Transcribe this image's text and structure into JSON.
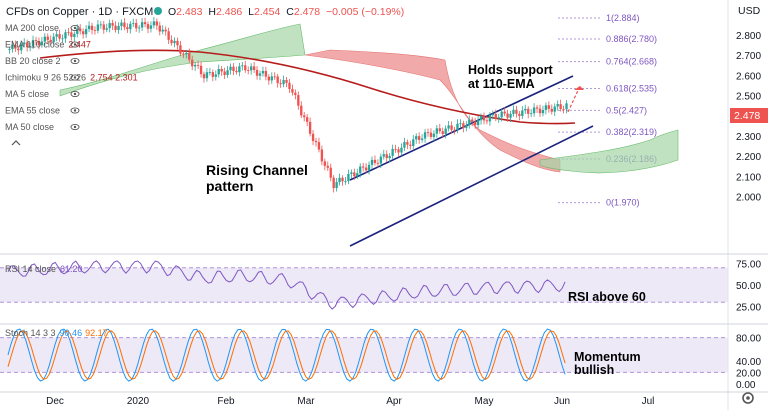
{
  "header": {
    "symbol": "CFDs on Copper · 1D · FXCM",
    "o_label": "O",
    "o": "2.483",
    "h_label": "H",
    "h": "2.486",
    "l_label": "L",
    "l": "2.454",
    "c_label": "C",
    "c": "2.478",
    "change": "−0.005 (−0.19%)"
  },
  "indicators": [
    {
      "label": "MA 200 close",
      "value": ""
    },
    {
      "label": "EMA 110 close",
      "value": "2.447"
    },
    {
      "label": "BB 20 close 2",
      "value": ""
    },
    {
      "label": "Ichimoku 9 26 52 26",
      "value": "2.754  2.301"
    },
    {
      "label": "MA 5 close",
      "value": ""
    },
    {
      "label": "EMA 55 close",
      "value": ""
    },
    {
      "label": "MA 50 close",
      "value": ""
    }
  ],
  "currency": "USD",
  "last_price": "2.478",
  "annotations": {
    "holds1": "Holds support",
    "holds2": "at 110-EMA",
    "channel1": "Rising Channel",
    "channel2": "pattern",
    "rsi_note": "RSI above 60",
    "mom1": "Momentum",
    "mom2": "bullish"
  },
  "rsi": {
    "label": "RSI 14 close",
    "value": "61.20"
  },
  "stoch": {
    "label": "Stoch 14 3 3",
    "k": "90.46",
    "d": "92.17"
  },
  "colors": {
    "up": "#26a69a",
    "down": "#ef5350",
    "ema": "#b71c1c",
    "cloud_bull": "#a5d6a7",
    "cloud_bear": "#ef9a9a",
    "channel": "#1a237e",
    "fib": "#7e57c2",
    "rsi": "#7e57c2",
    "stoch_k": "#2196f3",
    "stoch_d": "#ff6d00"
  },
  "chart_data": {
    "type": "candlestick",
    "x_ticks": [
      "Dec",
      "2020",
      "Feb",
      "Mar",
      "Apr",
      "May",
      "Jun",
      "Jul"
    ],
    "price_axis": {
      "ticks": [
        "2.800",
        "2.700",
        "2.600",
        "2.500",
        "2.400",
        "2.300",
        "2.200",
        "2.100",
        "2.000"
      ],
      "ylim": [
        1.93,
        2.9
      ]
    },
    "fib_levels": [
      {
        "label": "1(2.884)",
        "value": 2.884
      },
      {
        "label": "0.886(2.780)",
        "value": 2.78
      },
      {
        "label": "0.764(2.668)",
        "value": 2.668
      },
      {
        "label": "0.618(2.535)",
        "value": 2.535
      },
      {
        "label": "0.5(2.427)",
        "value": 2.427
      },
      {
        "label": "0.382(2.319)",
        "value": 2.319
      },
      {
        "label": "0.236(2.186)",
        "value": 2.186
      },
      {
        "label": "0(1.970)",
        "value": 1.97
      }
    ],
    "rsi_axis": {
      "ticks": [
        "75.00",
        "50.00",
        "25.00"
      ],
      "ylim": [
        15,
        85
      ]
    },
    "stoch_axis": {
      "ticks": [
        "80.00",
        "40.00",
        "20.00",
        "0.00"
      ],
      "ylim": [
        -5,
        105
      ]
    }
  }
}
